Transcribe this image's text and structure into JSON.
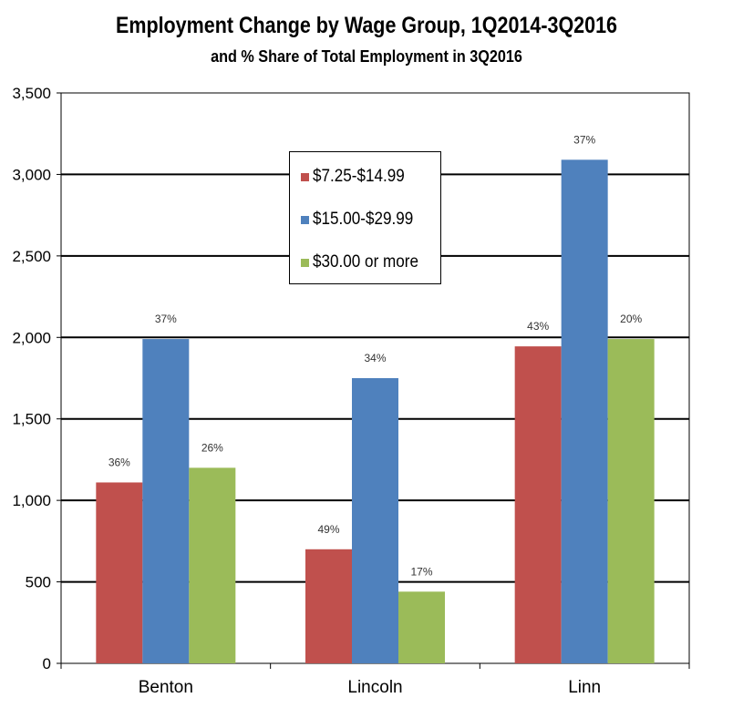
{
  "chart_data": {
    "type": "bar",
    "title": "Employment Change by Wage Group, 1Q2014-3Q2016",
    "subtitle": "and % Share of Total Employment in 3Q2016",
    "xlabel": "",
    "ylabel": "",
    "categories": [
      "Benton",
      "Lincoln",
      "Linn"
    ],
    "ylim": [
      0,
      3500
    ],
    "yticks": [
      0,
      500,
      1000,
      1500,
      2000,
      2500,
      3000,
      3500
    ],
    "ytick_labels": [
      "0",
      "500",
      "1,000",
      "1,500",
      "2,000",
      "2,500",
      "3,000",
      "3,500"
    ],
    "grid": true,
    "legend_position": "top-center",
    "series": [
      {
        "name": "$7.25-$14.99",
        "color": "#c0504d",
        "values": [
          1110,
          700,
          1945
        ],
        "labels": [
          "36%",
          "49%",
          "43%"
        ]
      },
      {
        "name": "$15.00-$29.99",
        "color": "#4f81bd",
        "values": [
          1990,
          1750,
          3090
        ],
        "labels": [
          "37%",
          "34%",
          "37%"
        ]
      },
      {
        "name": "$30.00 or more",
        "color": "#9bbb59",
        "values": [
          1200,
          440,
          1990
        ],
        "labels": [
          "26%",
          "17%",
          "20%"
        ]
      }
    ]
  }
}
